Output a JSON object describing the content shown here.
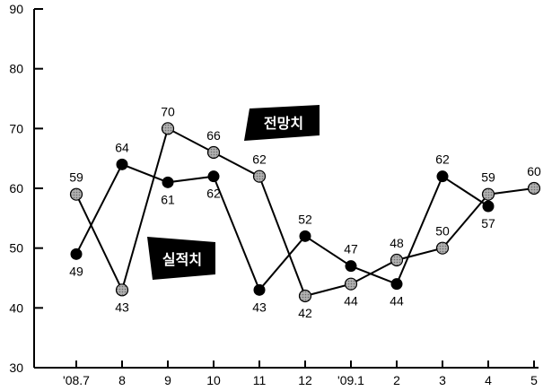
{
  "chart_data": {
    "type": "line",
    "categories": [
      "'08.7",
      "8",
      "9",
      "10",
      "11",
      "12",
      "'09.1",
      "2",
      "3",
      "4",
      "5"
    ],
    "ylim": [
      30,
      90
    ],
    "yticks": [
      30,
      40,
      50,
      60,
      70,
      80,
      90
    ],
    "grid": false,
    "series": [
      {
        "name": "전망치",
        "marker": "gray",
        "values": [
          59,
          43,
          70,
          66,
          62,
          42,
          44,
          48,
          50,
          59,
          60
        ],
        "labels": [
          "59",
          "43",
          "70",
          "66",
          "62",
          "42",
          "44",
          "48",
          "50",
          "59",
          "60"
        ]
      },
      {
        "name": "실적치",
        "marker": "black",
        "values": [
          49,
          64,
          61,
          62,
          43,
          52,
          47,
          44,
          62,
          57,
          null
        ],
        "labels": [
          "49",
          "64",
          "61",
          "62",
          "43",
          "52",
          "47",
          "44",
          "62",
          "57",
          null
        ]
      }
    ],
    "colors": {
      "axis": "#000000",
      "line": "#000000",
      "gray_marker": "#9a9a9a",
      "black_marker": "#000000",
      "badge_bg": "#000000",
      "badge_text": "#ffffff"
    }
  }
}
